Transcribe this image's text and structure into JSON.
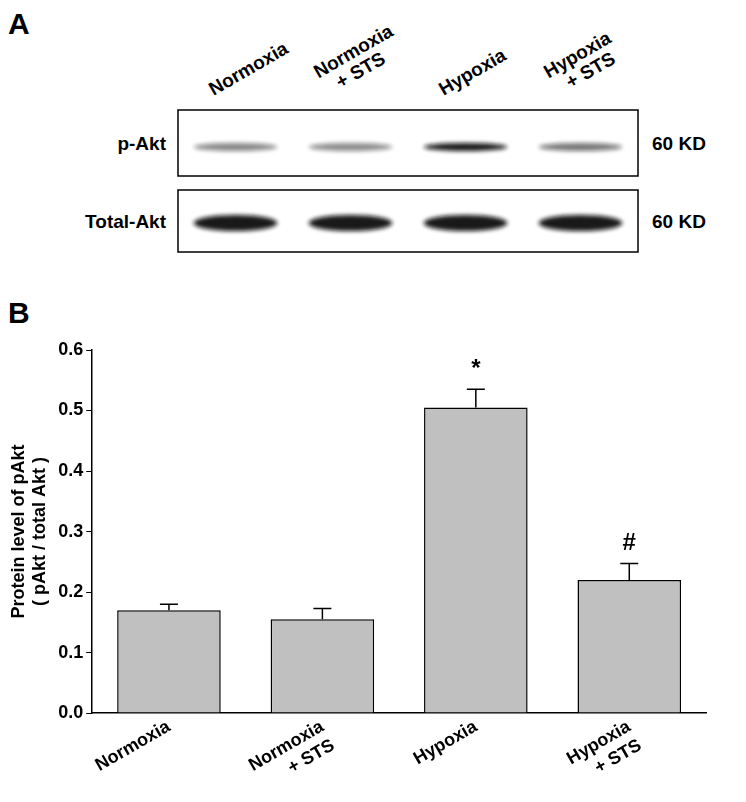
{
  "panel_a": {
    "label": "A",
    "lanes": [
      "Normoxia",
      "Normoxia\n+ STS",
      "Hypoxia",
      "Hypoxia\n+ STS"
    ],
    "rows": [
      {
        "name": "p-Akt",
        "size": "60 KD"
      },
      {
        "name": "Total-Akt",
        "size": "60 KD"
      }
    ]
  },
  "chart_data": {
    "label": "B",
    "type": "bar",
    "y_label": "Protein level of pAkt\n( pAkt / total Akt )",
    "categories": [
      "Normoxia",
      "Normoxia\n+ STS",
      "Hypoxia",
      "Hypoxia\n+ STS"
    ],
    "values": [
      0.17,
      0.155,
      0.505,
      0.22
    ],
    "errors": [
      0.01,
      0.018,
      0.03,
      0.027
    ],
    "annotations": [
      {
        "category": "Hypoxia",
        "text": "*"
      },
      {
        "category": "Hypoxia\n+ STS",
        "text": "#"
      }
    ],
    "color": "#c0c0c0",
    "ylim": [
      0,
      0.6
    ],
    "yticks": [
      {
        "value": 0,
        "label": "0.0"
      },
      0.1,
      0.2,
      0.3,
      0.4,
      0.5,
      0.6
    ],
    "grid": false
  }
}
